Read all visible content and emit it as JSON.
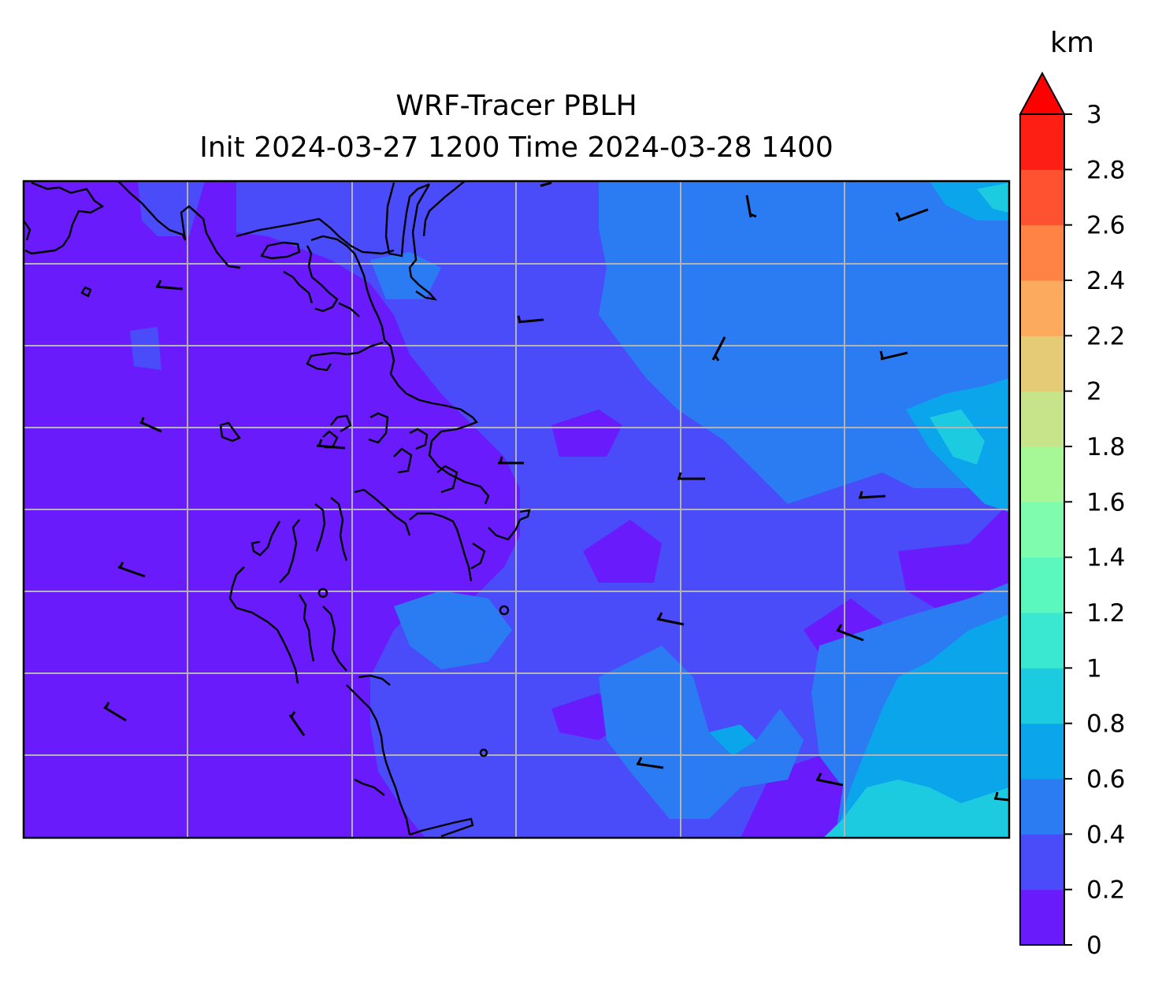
{
  "title_line1": "WRF-Tracer PBLH",
  "title_line2": "Init 2024-03-27 1200 Time 2024-03-28 1400",
  "colorbar": {
    "unit": "km",
    "ticks": [
      "0",
      "0.2",
      "0.4",
      "0.6",
      "0.8",
      "1",
      "1.2",
      "1.4",
      "1.6",
      "1.8",
      "2",
      "2.2",
      "2.4",
      "2.6",
      "2.8",
      "3"
    ],
    "range": [
      0,
      3
    ],
    "extend": "max",
    "levels": [
      {
        "from": 0.0,
        "to": 0.2,
        "color": "#6a1bfb"
      },
      {
        "from": 0.2,
        "to": 0.4,
        "color": "#4a4cf9"
      },
      {
        "from": 0.4,
        "to": 0.6,
        "color": "#2b7cf3"
      },
      {
        "from": 0.6,
        "to": 0.8,
        "color": "#0aa5ea"
      },
      {
        "from": 0.8,
        "to": 1.0,
        "color": "#1ccbe0"
      },
      {
        "from": 1.0,
        "to": 1.2,
        "color": "#3ae7d0"
      },
      {
        "from": 1.2,
        "to": 1.4,
        "color": "#5af8bf"
      },
      {
        "from": 1.4,
        "to": 1.6,
        "color": "#80fcae"
      },
      {
        "from": 1.6,
        "to": 1.8,
        "color": "#a5f895"
      },
      {
        "from": 1.8,
        "to": 2.0,
        "color": "#c8e48a"
      },
      {
        "from": 2.0,
        "to": 2.2,
        "color": "#e6cb76"
      },
      {
        "from": 2.2,
        "to": 2.4,
        "color": "#fcaa5e"
      },
      {
        "from": 2.4,
        "to": 2.6,
        "color": "#fe8345"
      },
      {
        "from": 2.6,
        "to": 2.8,
        "color": "#fe5231"
      },
      {
        "from": 2.8,
        "to": 3.0,
        "color": "#fe1f14"
      }
    ],
    "extend_color": "#ff0000"
  },
  "map": {
    "gridlines": true,
    "field_colors": {
      "low": "#6a1bfb",
      "mid": "#4a4cf9",
      "high": "#2b7cf3",
      "higher": "#0aa5ea",
      "peak": "#1ccbe0"
    }
  }
}
